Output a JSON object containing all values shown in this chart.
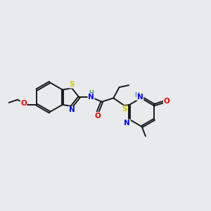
{
  "bg_color": "#e8eaec",
  "atom_colors": {
    "C": "#1a1a1a",
    "N": "#0000ee",
    "O": "#ee0000",
    "S": "#cccc00",
    "H": "#4a9090"
  },
  "bond_color": "#1a1a1a",
  "bond_width": 1.4,
  "dbo": 0.055,
  "fs": 7.5,
  "fs2": 6.0
}
